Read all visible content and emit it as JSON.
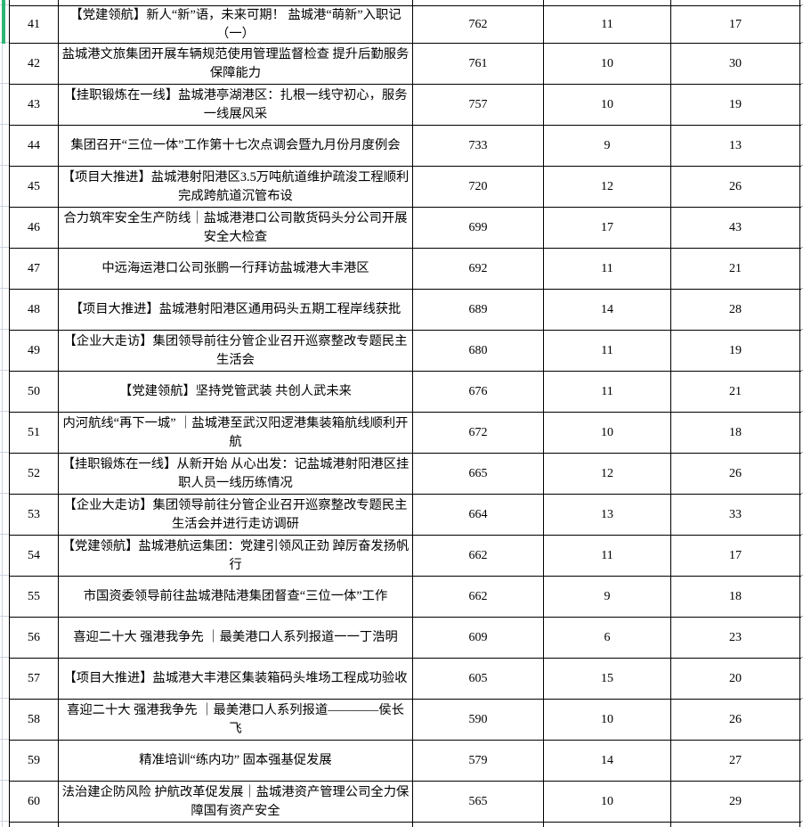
{
  "colors": {
    "border": "#000000",
    "grid_light": "#ccd4e1",
    "tick_gray": "#a8a8a8",
    "selection_green": "#2eb573",
    "text": "#000000",
    "background": "#ffffff"
  },
  "table": {
    "rows": [
      {
        "no": "41",
        "title": "【党建领航】新人“新”语，未来可期！ 盐城港“萌新”入职记（一）",
        "m1": "762",
        "m2": "11",
        "m3": "17"
      },
      {
        "no": "42",
        "title": "盐城港文旅集团开展车辆规范使用管理监督检查 提升后勤服务保障能力",
        "m1": "761",
        "m2": "10",
        "m3": "30"
      },
      {
        "no": "43",
        "title": "【挂职锻炼在一线】盐城港亭湖港区：扎根一线守初心，服务一线展风采",
        "m1": "757",
        "m2": "10",
        "m3": "19"
      },
      {
        "no": "44",
        "title": "集团召开“三位一体”工作第十七次点调会暨九月份月度例会",
        "m1": "733",
        "m2": "9",
        "m3": "13"
      },
      {
        "no": "45",
        "title": "【项目大推进】盐城港射阳港区3.5万吨航道维护疏浚工程顺利完成跨航道沉管布设",
        "m1": "720",
        "m2": "12",
        "m3": "26"
      },
      {
        "no": "46",
        "title": "合力筑牢安全生产防线｜盐城港港口公司散货码头分公司开展安全大检查",
        "m1": "699",
        "m2": "17",
        "m3": "43"
      },
      {
        "no": "47",
        "title": "中远海运港口公司张鹏一行拜访盐城港大丰港区",
        "m1": "692",
        "m2": "11",
        "m3": "21"
      },
      {
        "no": "48",
        "title": "【项目大推进】盐城港射阳港区通用码头五期工程岸线获批",
        "m1": "689",
        "m2": "14",
        "m3": "28"
      },
      {
        "no": "49",
        "title": "【企业大走访】集团领导前往分管企业召开巡察整改专题民主生活会",
        "m1": "680",
        "m2": "11",
        "m3": "19"
      },
      {
        "no": "50",
        "title": "【党建领航】坚持党管武装 共创人武未来",
        "m1": "676",
        "m2": "11",
        "m3": "21"
      },
      {
        "no": "51",
        "title": "内河航线“再下一城” ｜盐城港至武汉阳逻港集装箱航线顺利开航",
        "m1": "672",
        "m2": "10",
        "m3": "18"
      },
      {
        "no": "52",
        "title": "【挂职锻炼在一线】从新开始 从心出发：记盐城港射阳港区挂职人员一线历练情况",
        "m1": "665",
        "m2": "12",
        "m3": "26"
      },
      {
        "no": "53",
        "title": "【企业大走访】集团领导前往分管企业召开巡察整改专题民主生活会并进行走访调研",
        "m1": "664",
        "m2": "13",
        "m3": "33"
      },
      {
        "no": "54",
        "title": "【党建领航】盐城港航运集团：党建引领风正劲 踔厉奋发扬帆行",
        "m1": "662",
        "m2": "11",
        "m3": "17"
      },
      {
        "no": "55",
        "title": "市国资委领导前往盐城港陆港集团督查“三位一体”工作",
        "m1": "662",
        "m2": "9",
        "m3": "18"
      },
      {
        "no": "56",
        "title": "喜迎二十大 强港我争先 ｜最美港口人系列报道一一丁浩明",
        "m1": "609",
        "m2": "6",
        "m3": "23"
      },
      {
        "no": "57",
        "title": "【项目大推进】盐城港大丰港区集装箱码头堆场工程成功验收",
        "m1": "605",
        "m2": "15",
        "m3": "20"
      },
      {
        "no": "58",
        "title": "喜迎二十大 强港我争先 ｜最美港口人系列报道————侯长飞",
        "m1": "590",
        "m2": "10",
        "m3": "26"
      },
      {
        "no": "59",
        "title": "精准培训“练内功” 固本强基促发展",
        "m1": "579",
        "m2": "14",
        "m3": "27"
      },
      {
        "no": "60",
        "title": "法治建企防风险 护航改革促发展｜盐城港资产管理公司全力保障国有资产安全",
        "m1": "565",
        "m2": "10",
        "m3": "29"
      }
    ]
  }
}
